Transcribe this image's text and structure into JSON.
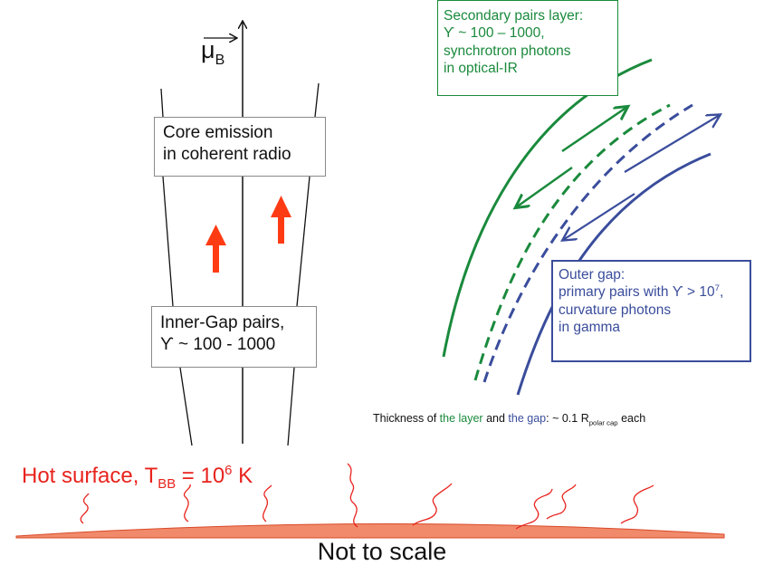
{
  "axis": {
    "mu": "μ",
    "mu_sub": "B"
  },
  "core_box": {
    "line1": "Core emission",
    "line2": "in coherent radio"
  },
  "inner_gap_box": {
    "line1": "Inner-Gap pairs,",
    "line2": "ϒ ~ 100 - 1000"
  },
  "secondary_box": {
    "line1": "Secondary pairs layer:",
    "line2": "ϒ ~ 100 – 1000,",
    "line3": "synchrotron photons",
    "line4": "in optical-IR"
  },
  "outer_box": {
    "line1": "Outer gap:",
    "line2_a": "primary pairs with ϒ > 10",
    "line2_sup": "7",
    "line2_b": ",",
    "line3": "curvature photons",
    "line4": "in gamma"
  },
  "thickness_note": {
    "prefix": "Thickness of ",
    "layer": "the layer",
    "and": " and ",
    "gap": "the gap",
    "mid": ": ~ 0.1 R",
    "sub": "polar cap",
    "suffix": " each"
  },
  "surface": {
    "label_a": "Hot surface, T",
    "label_sub": "BB",
    "label_b": " = 10",
    "label_sup": "6",
    "label_c": " K"
  },
  "footer": "Not to scale",
  "colors": {
    "green": "#1a8a3c",
    "blue": "#3a4d9c",
    "red": "#e8231d",
    "surface_fill": "#f08a6a"
  }
}
